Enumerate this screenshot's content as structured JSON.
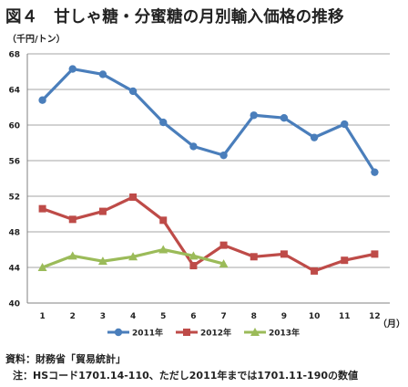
{
  "title": "図４　甘しゃ糖・分蜜糖の月別輸入価格の推移",
  "source": "資料：財務省「貿易統計」",
  "note": "注：HSコード1701.14-110、ただし2011年までは1701.11-190の数値",
  "chart_data": {
    "type": "line",
    "title": "図４　甘しゃ糖・分蜜糖の月別輸入価格の推移",
    "ylabel": "（千円/トン）",
    "xlabel": "（月）",
    "x": [
      1,
      2,
      3,
      4,
      5,
      6,
      7,
      8,
      9,
      10,
      11,
      12
    ],
    "ylim": [
      40,
      68
    ],
    "yticks": [
      40,
      44,
      48,
      52,
      56,
      60,
      64,
      68
    ],
    "grid": "horizontal",
    "legend": "bottom",
    "series": [
      {
        "name": "2011年",
        "color": "#4a7ebb",
        "marker": "circle",
        "values": [
          62.8,
          66.3,
          65.7,
          63.8,
          60.3,
          57.6,
          56.6,
          61.1,
          60.8,
          58.6,
          60.1,
          54.7
        ]
      },
      {
        "name": "2012年",
        "color": "#be4b48",
        "marker": "square",
        "values": [
          50.6,
          49.4,
          50.3,
          51.9,
          49.3,
          44.2,
          46.5,
          45.2,
          45.5,
          43.6,
          44.8,
          45.5
        ]
      },
      {
        "name": "2013年",
        "color": "#9bbb59",
        "marker": "triangle",
        "values": [
          44.0,
          45.3,
          44.7,
          45.2,
          46.0,
          45.3,
          44.4,
          null,
          null,
          null,
          null,
          null
        ]
      }
    ]
  }
}
